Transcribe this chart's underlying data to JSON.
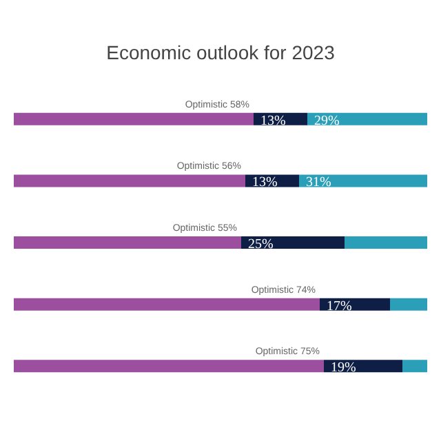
{
  "chart_data": {
    "type": "bar",
    "orientation": "horizontal",
    "stacked": true,
    "title": "Economic outlook for 2023",
    "categories": [
      null,
      null,
      null,
      null,
      null
    ],
    "xlim": [
      0,
      100
    ],
    "tick_labels": false,
    "series": [
      {
        "color": "#9b4f9e",
        "values": [
          58,
          56,
          55,
          74,
          75
        ],
        "value_labels": [
          "Optimistic 58%",
          "Optimistic 56%",
          "Optimistic 55%",
          "Optimistic 74%",
          "Optimistic 75%"
        ]
      },
      {
        "color": "#0e1e45",
        "values": [
          13,
          13,
          25,
          17,
          19
        ],
        "value_labels": [
          "13%",
          "13%",
          "25%",
          "17%",
          "19%"
        ]
      },
      {
        "color": "#2b9fb7",
        "values": [
          29,
          31,
          20,
          9,
          6
        ],
        "value_labels": [
          "29%",
          "31%",
          null,
          null,
          null
        ]
      }
    ]
  }
}
